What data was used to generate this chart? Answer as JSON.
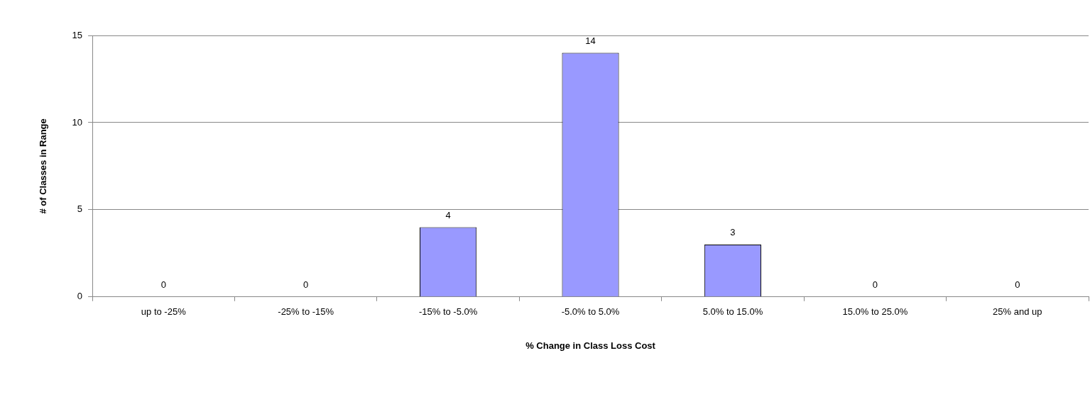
{
  "chart_data": {
    "type": "bar",
    "xlabel": "% Change in Class Loss Cost",
    "ylabel": "# of Classes in Range",
    "categories": [
      "up to -25%",
      "-25% to -15%",
      "-15% to -5.0%",
      "-5.0% to 5.0%",
      "5.0% to 15.0%",
      "15.0% to 25.0%",
      "25% and up"
    ],
    "values": [
      0,
      0,
      4,
      14,
      3,
      0,
      0
    ],
    "color": "#9999ff",
    "ylim": [
      0,
      15
    ],
    "yticks": [
      0,
      5,
      10,
      15
    ],
    "grid": "y",
    "data_labels": true
  }
}
